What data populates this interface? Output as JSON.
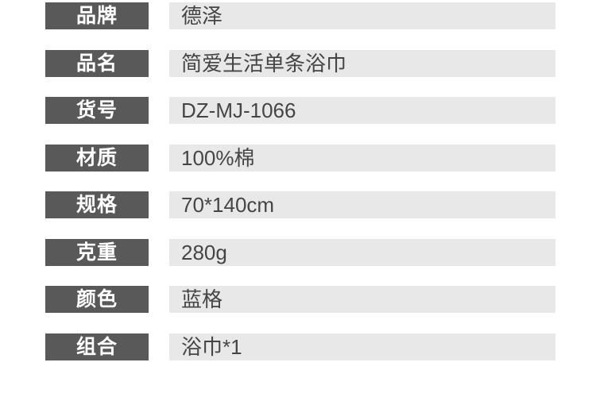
{
  "colors": {
    "page_bg": "#ffffff",
    "label_bg": "#595959",
    "label_text": "#ffffff",
    "value_bg": "#e8e8e8",
    "value_text": "#454545"
  },
  "spec_table": {
    "rows": [
      {
        "label": "品牌",
        "value": "德泽"
      },
      {
        "label": "品名",
        "value": "简爱生活单条浴巾"
      },
      {
        "label": "货号",
        "value": "DZ-MJ-1066"
      },
      {
        "label": "材质",
        "value": "100%棉"
      },
      {
        "label": "规格",
        "value": "70*140cm"
      },
      {
        "label": "克重",
        "value": "280g"
      },
      {
        "label": "颜色",
        "value": "蓝格"
      },
      {
        "label": "组合",
        "value": "浴巾*1"
      }
    ]
  }
}
